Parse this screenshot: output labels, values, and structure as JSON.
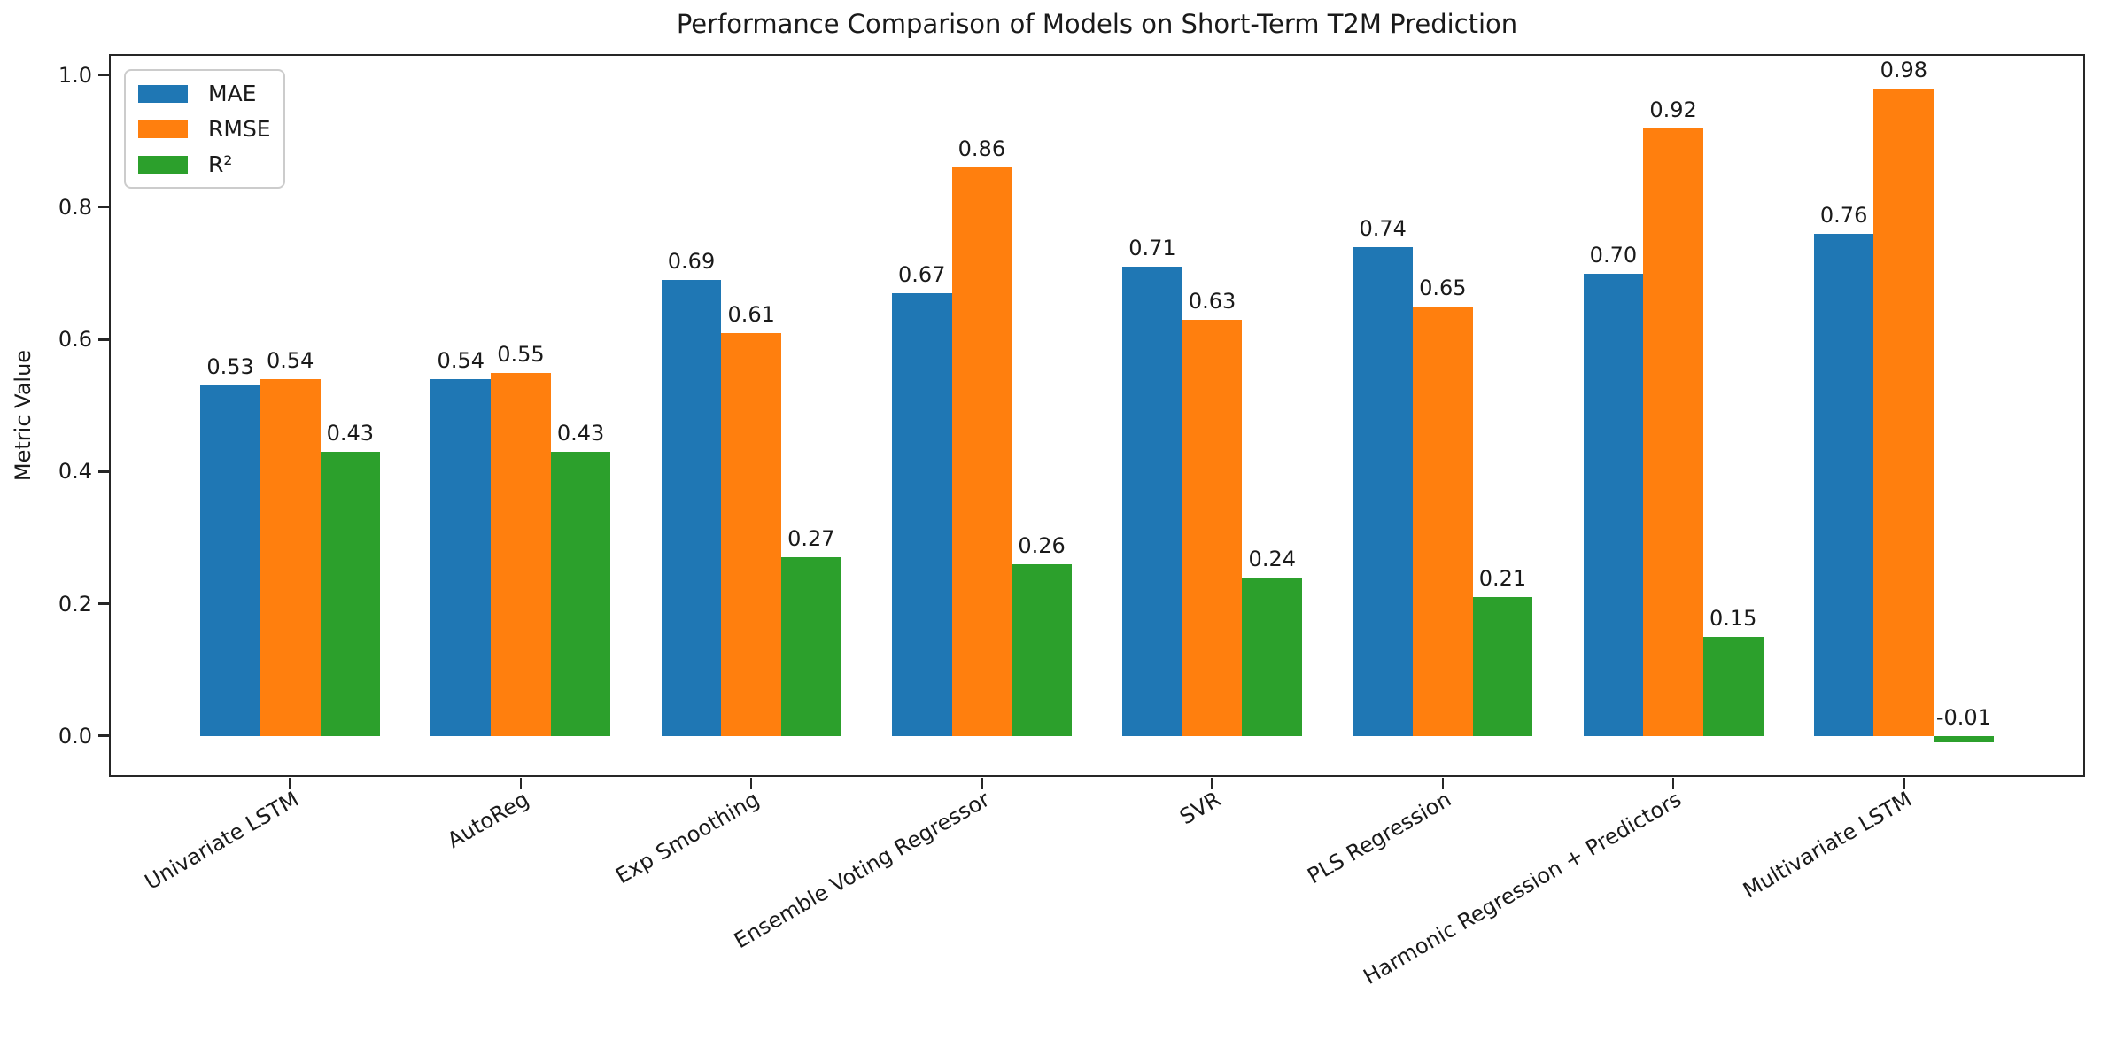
{
  "chart_data": {
    "type": "bar",
    "title": "Performance Comparison of Models on Short-Term T2M Prediction",
    "xlabel": "",
    "ylabel": "Metric Value",
    "categories": [
      "Univariate LSTM",
      "AutoReg",
      "Exp Smoothing",
      "Ensemble Voting Regressor",
      "SVR",
      "PLS Regression",
      "Harmonic Regression + Predictors",
      "Multivariate LSTM"
    ],
    "series": [
      {
        "name": "MAE",
        "color": "#1f77b4",
        "values": [
          0.53,
          0.54,
          0.69,
          0.67,
          0.71,
          0.74,
          0.7,
          0.76
        ],
        "labels": [
          "0.53",
          "0.54",
          "0.69",
          "0.67",
          "0.71",
          "0.74",
          "0.70",
          "0.76"
        ]
      },
      {
        "name": "RMSE",
        "color": "#ff7f0e",
        "values": [
          0.54,
          0.55,
          0.61,
          0.86,
          0.63,
          0.65,
          0.92,
          0.98
        ],
        "labels": [
          "0.54",
          "0.55",
          "0.61",
          "0.86",
          "0.63",
          "0.65",
          "0.92",
          "0.98"
        ]
      },
      {
        "name": "R²",
        "color": "#2ca02c",
        "values": [
          0.43,
          0.43,
          0.27,
          0.26,
          0.24,
          0.21,
          0.15,
          -0.01
        ],
        "labels": [
          "0.43",
          "0.43",
          "0.27",
          "0.26",
          "0.24",
          "0.21",
          "0.15",
          "-0.01"
        ]
      }
    ],
    "yticks": [
      0.0,
      0.2,
      0.4,
      0.6,
      0.8,
      1.0
    ],
    "ytick_labels": [
      "0.0",
      "0.2",
      "0.4",
      "0.6",
      "0.8",
      "1.0"
    ],
    "ylim": [
      -0.0595,
      1.0295
    ],
    "bar_width": 0.26,
    "grid": false,
    "xtick_rotation_deg": 30,
    "legend": {
      "position": "upper left",
      "entries": [
        "MAE",
        "RMSE",
        "R²"
      ]
    },
    "colors": {
      "text": "#1a1a1a",
      "axis": "#262626",
      "background": "#ffffff",
      "legend_border": "#cccccc"
    }
  }
}
